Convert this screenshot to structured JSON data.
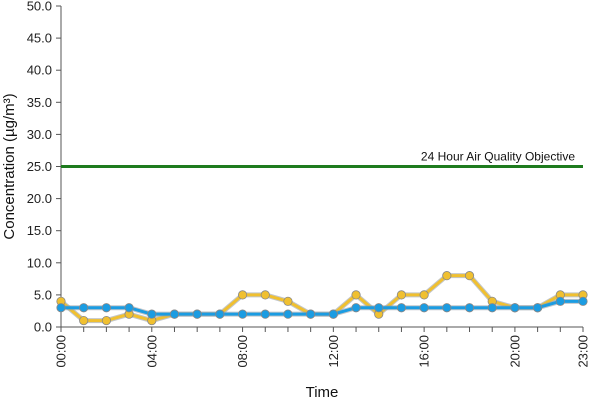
{
  "chart_data": {
    "type": "line",
    "xlabel": "Time",
    "ylabel": "Concentration (µg/m³)",
    "ylim": [
      0,
      50
    ],
    "yticks": [
      "0.0",
      "5.0",
      "10.0",
      "15.0",
      "20.0",
      "25.0",
      "30.0",
      "35.0",
      "40.0",
      "45.0",
      "50.0"
    ],
    "xlim": [
      0,
      23
    ],
    "xticks": [
      {
        "hour": 0,
        "label": "00:00"
      },
      {
        "hour": 4,
        "label": "04:00"
      },
      {
        "hour": 8,
        "label": "08:00"
      },
      {
        "hour": 12,
        "label": "12:00"
      },
      {
        "hour": 16,
        "label": "16:00"
      },
      {
        "hour": 20,
        "label": "20:00"
      },
      {
        "hour": 23,
        "label": "23:00"
      }
    ],
    "x": [
      0,
      1,
      2,
      3,
      4,
      5,
      6,
      7,
      8,
      9,
      10,
      11,
      12,
      13,
      14,
      15,
      16,
      17,
      18,
      19,
      20,
      21,
      22,
      23
    ],
    "grid": false,
    "objective": {
      "value": 25,
      "label": "24 Hour Air Quality Objective",
      "color": "#1e7b1e"
    },
    "series": [
      {
        "color": "#f0c030",
        "values": [
          4,
          1,
          1,
          2,
          1,
          2,
          2,
          2,
          5,
          5,
          4,
          2,
          2,
          5,
          2,
          5,
          5,
          8,
          8,
          4,
          3,
          3,
          5,
          5
        ]
      },
      {
        "color": "#1b9ce2",
        "values": [
          3,
          3,
          3,
          3,
          2,
          2,
          2,
          2,
          2,
          2,
          2,
          2,
          2,
          3,
          3,
          3,
          3,
          3,
          3,
          3,
          3,
          3,
          4,
          4
        ]
      }
    ]
  }
}
